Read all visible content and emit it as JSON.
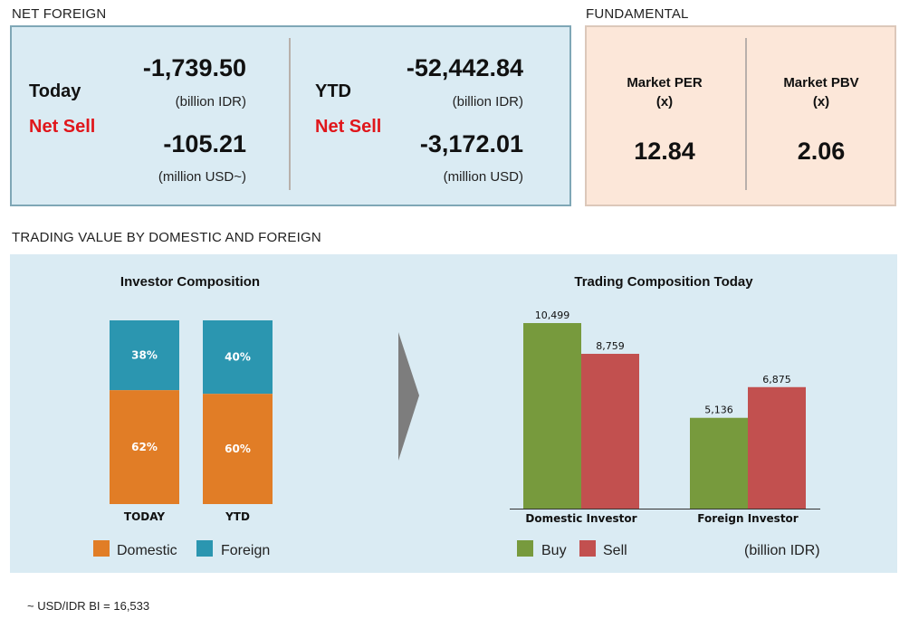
{
  "net_foreign": {
    "section_title": "NET FOREIGN",
    "today": {
      "label": "Today",
      "status": "Net Sell",
      "idr_value": "-1,739.50",
      "idr_unit": "(billion IDR)",
      "usd_value": "-105.21",
      "usd_unit": "(million USD~)"
    },
    "ytd": {
      "label": "YTD",
      "status": "Net Sell",
      "idr_value": "-52,442.84",
      "idr_unit": "(billion IDR)",
      "usd_value": "-3,172.01",
      "usd_unit": "(million USD)"
    }
  },
  "fundamental": {
    "section_title": "FUNDAMENTAL",
    "per": {
      "label": "Market PER",
      "unit": "(x)",
      "value": "12.84"
    },
    "pbv": {
      "label": "Market PBV",
      "unit": "(x)",
      "value": "2.06"
    }
  },
  "trading_section": {
    "title": "TRADING VALUE BY DOMESTIC AND FOREIGN"
  },
  "footnote": "~ USD/IDR BI = 16,533",
  "colors": {
    "domestic": "#e17d26",
    "foreign": "#2b96b0",
    "buy": "#779a3d",
    "sell": "#c2504f",
    "net_sell": "#e0161b",
    "arrow": "#7d7d7d"
  },
  "chart_data": [
    {
      "type": "bar",
      "stacked": true,
      "percent": true,
      "title": "Investor Composition",
      "categories": [
        "TODAY",
        "YTD"
      ],
      "series": [
        {
          "name": "Domestic",
          "values": [
            62,
            60
          ],
          "labels": [
            "62%",
            "60%"
          ],
          "color": "#e17d26"
        },
        {
          "name": "Foreign",
          "values": [
            38,
            40
          ],
          "labels": [
            "38%",
            "40%"
          ],
          "color": "#2b96b0"
        }
      ],
      "ylim": [
        0,
        100
      ],
      "legend": "bottom",
      "grid": false
    },
    {
      "type": "bar",
      "title": "Trading Composition Today",
      "categories": [
        "Domestic Investor",
        "Foreign Investor"
      ],
      "series": [
        {
          "name": "Buy",
          "values": [
            10499,
            5136
          ],
          "labels": [
            "10,499",
            "5,136"
          ],
          "color": "#779a3d"
        },
        {
          "name": "Sell",
          "values": [
            8759,
            6875
          ],
          "labels": [
            "8,759",
            "6,875"
          ],
          "color": "#c2504f"
        }
      ],
      "unit_note": "(billion IDR)",
      "ylim": [
        0,
        10499
      ],
      "legend": "bottom",
      "grid": false
    }
  ]
}
